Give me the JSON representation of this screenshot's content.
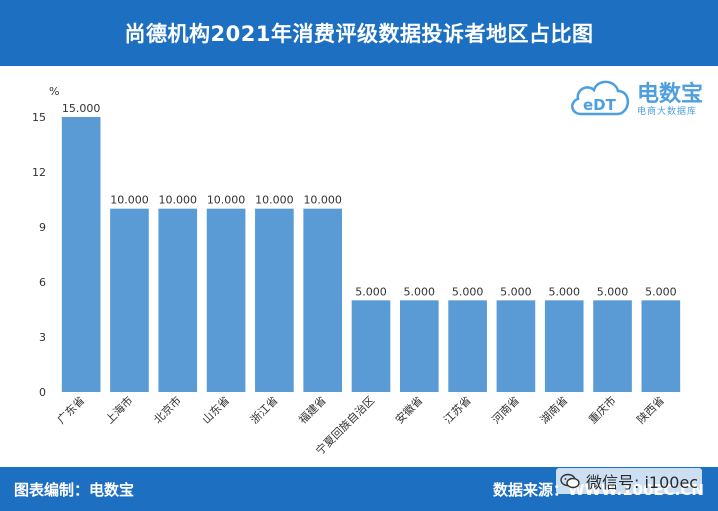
{
  "header": {
    "title": "尚德机构2021年消费评级数据投诉者地区占比图"
  },
  "footer": {
    "left": "图表编制：电数宝",
    "right": "数据来源：WWW.100EC.CN"
  },
  "watermark": {
    "text": "微信号: i100ec",
    "icon": "wechat-icon"
  },
  "logo": {
    "name": "电数宝",
    "sub": "电商大数据库",
    "icon": "cloud-edt-icon"
  },
  "colors": {
    "header": "#1d6fc2",
    "bar": "#5b9bd5"
  },
  "chart_data": {
    "type": "bar",
    "ylabel": "%",
    "ylim": [
      0,
      15
    ],
    "yticks": [
      0,
      3,
      6,
      9,
      12,
      15
    ],
    "grid": false,
    "categories": [
      "广东省",
      "上海市",
      "北京市",
      "山东省",
      "浙江省",
      "福建省",
      "宁夏回族自治区",
      "安徽省",
      "江苏省",
      "河南省",
      "湖南省",
      "重庆市",
      "陕西省"
    ],
    "values": [
      15.0,
      10.0,
      10.0,
      10.0,
      10.0,
      10.0,
      5.0,
      5.0,
      5.0,
      5.0,
      5.0,
      5.0,
      5.0
    ],
    "data_labels": [
      "15.000",
      "10.000",
      "10.000",
      "10.000",
      "10.000",
      "10.000",
      "5.000",
      "5.000",
      "5.000",
      "5.000",
      "5.000",
      "5.000",
      "5.000"
    ]
  }
}
